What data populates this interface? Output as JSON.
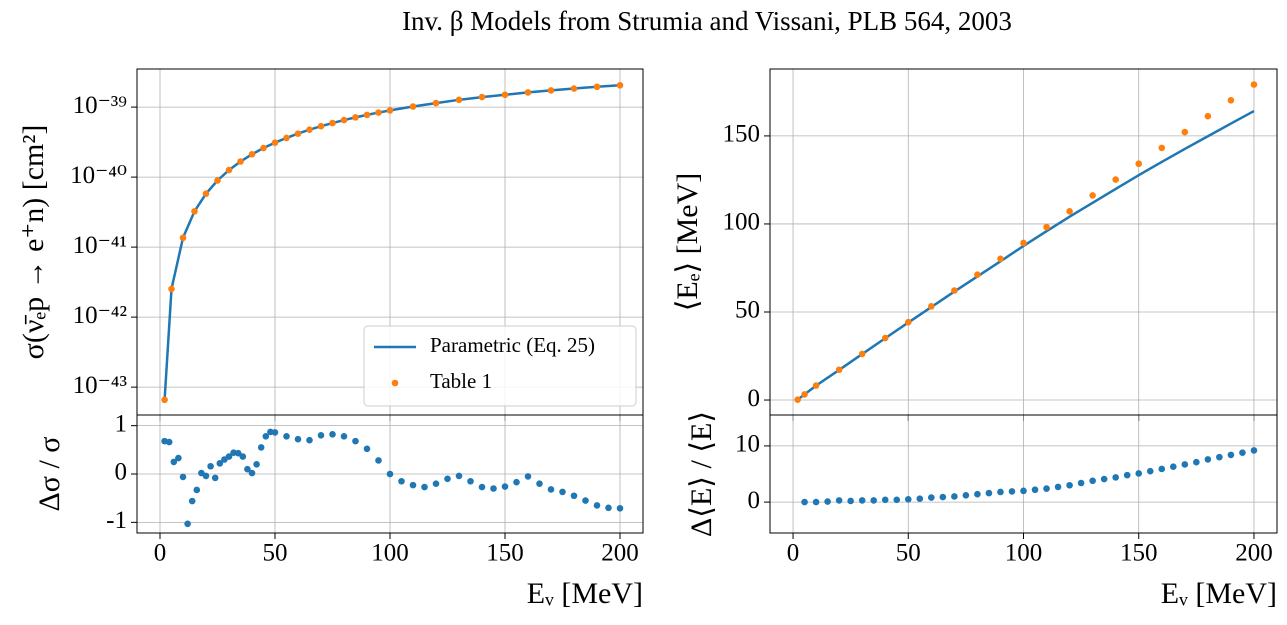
{
  "title": "Inv. β Models from Strumia and Vissani, PLB 564, 2003",
  "chart_data": [
    {
      "type": "line",
      "ylabel": "σ(ν̄ₑp → e⁺n) [cm²]",
      "yscale": "log",
      "grid": true,
      "legend": "lower right",
      "xlim": [
        -10,
        210
      ],
      "xticks": [
        0,
        50,
        100,
        150,
        200
      ],
      "xticklabels": false,
      "ylim": [
        4e-44,
        3.5e-39
      ],
      "yticks": [
        {
          "value": 1e-43,
          "label": "10⁻⁴³"
        },
        {
          "value": 1e-42,
          "label": "10⁻⁴²"
        },
        {
          "value": 1e-41,
          "label": "10⁻⁴¹"
        },
        {
          "value": 1e-40,
          "label": "10⁻⁴⁰"
        },
        {
          "value": 1e-39,
          "label": "10⁻³⁹"
        }
      ],
      "x": [
        2,
        5,
        10,
        15,
        20,
        25,
        30,
        35,
        40,
        45,
        50,
        55,
        60,
        65,
        70,
        75,
        80,
        85,
        90,
        95,
        100,
        110,
        120,
        130,
        140,
        150,
        160,
        170,
        180,
        190,
        200
      ],
      "series": [
        {
          "name": "Parametric (Eq. 25)",
          "type": "line",
          "color": "#1f77b4",
          "values": [
            6.6e-44,
            2.53e-42,
            1.36e-41,
            3.24e-41,
            5.8e-41,
            8.94e-41,
            1.26e-40,
            1.67e-40,
            2.12e-40,
            2.6e-40,
            3.1e-40,
            3.63e-40,
            4.18e-40,
            4.75e-40,
            5.33e-40,
            5.92e-40,
            6.52e-40,
            7.13e-40,
            7.74e-40,
            8.35e-40,
            8.97e-40,
            1.02e-39,
            1.14e-39,
            1.27e-39,
            1.39e-39,
            1.5e-39,
            1.62e-39,
            1.73e-39,
            1.84e-39,
            1.95e-39,
            2.05e-39
          ]
        },
        {
          "name": "Table 1",
          "type": "scatter",
          "color": "#ff7f0e",
          "values": [
            6.6e-44,
            2.53e-42,
            1.36e-41,
            3.24e-41,
            5.8e-41,
            8.94e-41,
            1.26e-40,
            1.67e-40,
            2.12e-40,
            2.6e-40,
            3.1e-40,
            3.63e-40,
            4.18e-40,
            4.75e-40,
            5.33e-40,
            5.92e-40,
            6.52e-40,
            7.13e-40,
            7.74e-40,
            8.35e-40,
            8.97e-40,
            1.02e-39,
            1.14e-39,
            1.27e-39,
            1.39e-39,
            1.5e-39,
            1.62e-39,
            1.73e-39,
            1.84e-39,
            1.95e-39,
            2.05e-39
          ]
        }
      ]
    },
    {
      "type": "scatter",
      "ylabel": "Δσ / σ",
      "xlabel": "Eᵥ [MeV]",
      "grid": true,
      "color": "#1f77b4",
      "xlim": [
        -10,
        210
      ],
      "xticks": [
        0,
        50,
        100,
        150,
        200
      ],
      "ylim": [
        -1.22,
        1.22
      ],
      "yticks": [
        -1,
        0,
        1
      ],
      "x": [
        2,
        4,
        6,
        8,
        10,
        12,
        14,
        16,
        18,
        20,
        22,
        24,
        26,
        28,
        30,
        32,
        34,
        36,
        38,
        40,
        42,
        44,
        46,
        48,
        50,
        55,
        60,
        65,
        70,
        75,
        80,
        85,
        90,
        95,
        100,
        105,
        110,
        115,
        120,
        125,
        130,
        135,
        140,
        145,
        150,
        155,
        160,
        165,
        170,
        175,
        180,
        185,
        190,
        195,
        200
      ],
      "values": [
        0.68,
        0.66,
        0.25,
        0.33,
        -0.06,
        -1.03,
        -0.56,
        -0.33,
        0.02,
        -0.04,
        0.16,
        -0.08,
        0.22,
        0.3,
        0.36,
        0.44,
        0.43,
        0.36,
        0.1,
        0.02,
        0.2,
        0.55,
        0.78,
        0.87,
        0.86,
        0.78,
        0.72,
        0.7,
        0.8,
        0.82,
        0.78,
        0.68,
        0.52,
        0.28,
        0.0,
        -0.15,
        -0.23,
        -0.27,
        -0.2,
        -0.1,
        -0.04,
        -0.15,
        -0.27,
        -0.3,
        -0.26,
        -0.17,
        -0.05,
        -0.2,
        -0.32,
        -0.37,
        -0.45,
        -0.55,
        -0.65,
        -0.7,
        -0.71
      ]
    },
    {
      "type": "line",
      "ylabel": "⟨Eₑ⟩ [MeV]",
      "grid": true,
      "xlim": [
        -10,
        210
      ],
      "xticks": [
        0,
        50,
        100,
        150,
        200
      ],
      "xticklabels": false,
      "ylim": [
        -8.5,
        188
      ],
      "yticks": [
        0,
        50,
        100,
        150
      ],
      "x": [
        2,
        5,
        10,
        20,
        30,
        40,
        50,
        60,
        70,
        80,
        90,
        100,
        110,
        120,
        130,
        140,
        150,
        160,
        170,
        180,
        190,
        200
      ],
      "series": [
        {
          "type": "line",
          "color": "#1f77b4",
          "values": [
            0.2,
            3.2,
            8.2,
            17.1,
            26.1,
            35.1,
            44.0,
            52.8,
            61.6,
            70.2,
            78.8,
            87.5,
            95.9,
            104.1,
            112.0,
            119.9,
            127.7,
            135.2,
            142.6,
            149.8,
            157.0,
            164.1
          ]
        },
        {
          "type": "scatter",
          "color": "#ff7f0e",
          "values": [
            0.2,
            3.2,
            8.2,
            17.2,
            26.2,
            35.2,
            44.2,
            53.2,
            62.2,
            71.2,
            80.2,
            89.2,
            98.2,
            107.2,
            116.2,
            125.2,
            134.2,
            143.2,
            152.2,
            161.2,
            170.2,
            179.2
          ]
        }
      ]
    },
    {
      "type": "scatter",
      "ylabel": "Δ⟨E⟩ / ⟨E⟩",
      "xlabel": "Eᵥ [MeV]",
      "grid": true,
      "color": "#1f77b4",
      "xlim": [
        -10,
        210
      ],
      "xticks": [
        0,
        50,
        100,
        150,
        200
      ],
      "ylim": [
        -5.5,
        15.5
      ],
      "yticks": [
        0,
        10
      ],
      "x": [
        5,
        10,
        15,
        20,
        25,
        30,
        35,
        40,
        45,
        50,
        55,
        60,
        65,
        70,
        75,
        80,
        85,
        90,
        95,
        100,
        105,
        110,
        115,
        120,
        125,
        130,
        135,
        140,
        145,
        150,
        155,
        160,
        165,
        170,
        175,
        180,
        185,
        190,
        195,
        200
      ],
      "values": [
        0,
        0,
        0.1,
        0.3,
        0.2,
        0.3,
        0.3,
        0.4,
        0.4,
        0.5,
        0.6,
        0.8,
        0.9,
        1.0,
        1.2,
        1.4,
        1.6,
        1.8,
        1.9,
        2.0,
        2.2,
        2.4,
        2.7,
        3.0,
        3.4,
        3.8,
        4.1,
        4.4,
        4.8,
        5.1,
        5.5,
        5.9,
        6.3,
        6.7,
        7.1,
        7.6,
        8.0,
        8.4,
        8.8,
        9.2
      ]
    }
  ]
}
